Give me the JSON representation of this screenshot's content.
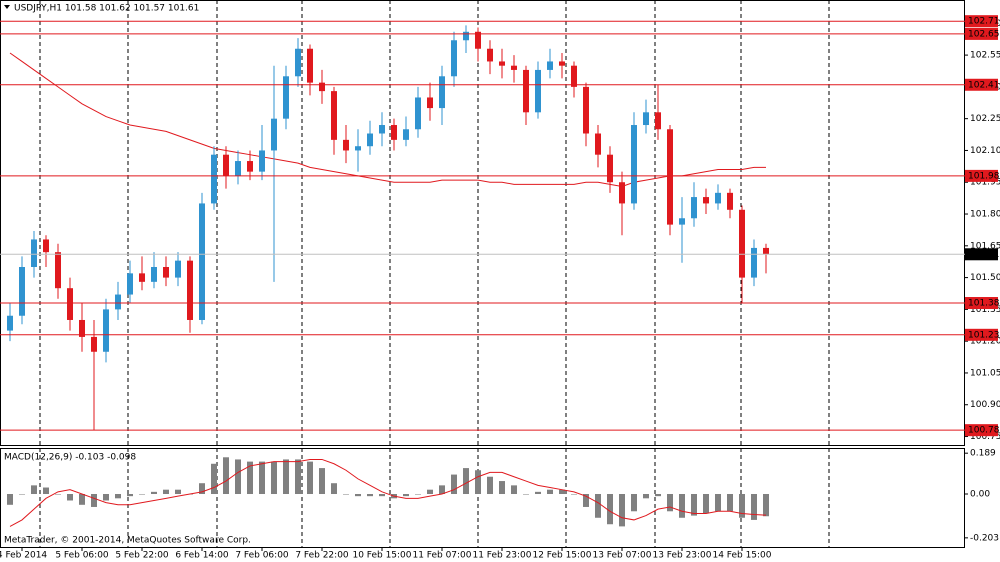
{
  "chart_data": [
    {
      "type": "candlestick",
      "title": "USDJPY,H1  101.58 101.62 101.57 101.61",
      "categories": [
        null,
        "4 Feb 2014",
        null,
        null,
        null,
        null,
        "5 Feb 06:00",
        null,
        null,
        null,
        null,
        "5 Feb 22:00",
        null,
        null,
        null,
        null,
        "6 Feb 14:00",
        null,
        null,
        null,
        null,
        "7 Feb 06:00",
        null,
        null,
        null,
        null,
        "7 Feb 22:00",
        null,
        null,
        null,
        null,
        "10 Feb 15:00",
        null,
        null,
        null,
        null,
        "11 Feb 07:00",
        null,
        null,
        null,
        null,
        "11 Feb 23:00",
        null,
        null,
        null,
        null,
        "12 Feb 15:00",
        null,
        null,
        null,
        null,
        "13 Feb 07:00",
        null,
        null,
        null,
        null,
        "13 Feb 23:00",
        null,
        null,
        null,
        null,
        "14 Feb 15:00",
        null,
        null
      ],
      "open": [
        101.25,
        101.32,
        101.55,
        101.68,
        101.62,
        101.45,
        101.3,
        101.22,
        101.15,
        101.35,
        101.42,
        101.52,
        101.48,
        101.55,
        101.5,
        101.58,
        101.3,
        101.85,
        102.08,
        101.98,
        102.05,
        102.0,
        102.1,
        102.25,
        102.45,
        102.58,
        102.42,
        102.38,
        102.15,
        102.1,
        102.12,
        102.18,
        102.22,
        102.15,
        102.2,
        102.35,
        102.3,
        102.45,
        102.62,
        102.66,
        102.58,
        102.52,
        102.5,
        102.48,
        102.28,
        102.48,
        102.52,
        102.5,
        102.4,
        102.18,
        102.08,
        101.95,
        101.85,
        102.22,
        102.28,
        102.2,
        101.75,
        101.78,
        101.88,
        101.85,
        101.9,
        101.82,
        101.5,
        101.64
      ],
      "high": [
        101.38,
        101.6,
        101.72,
        101.7,
        101.66,
        101.5,
        101.38,
        101.3,
        101.4,
        101.48,
        101.58,
        101.6,
        101.62,
        101.6,
        101.62,
        101.6,
        101.9,
        102.12,
        102.12,
        102.1,
        102.1,
        102.22,
        102.5,
        102.5,
        102.63,
        102.6,
        102.48,
        102.4,
        102.22,
        102.2,
        102.24,
        102.28,
        102.25,
        102.26,
        102.4,
        102.42,
        102.5,
        102.66,
        102.69,
        102.68,
        102.62,
        102.58,
        102.55,
        102.5,
        102.52,
        102.58,
        102.56,
        102.52,
        102.42,
        102.22,
        102.12,
        102.0,
        102.28,
        102.34,
        102.41,
        102.22,
        101.88,
        101.95,
        101.92,
        101.94,
        101.92,
        101.84,
        101.68,
        101.66
      ],
      "low": [
        101.2,
        101.28,
        101.5,
        101.55,
        101.4,
        101.25,
        101.15,
        100.78,
        101.1,
        101.3,
        101.38,
        101.44,
        101.45,
        101.46,
        101.46,
        101.24,
        101.28,
        101.82,
        101.92,
        101.94,
        101.96,
        101.96,
        101.48,
        102.2,
        102.4,
        102.36,
        102.32,
        102.08,
        102.04,
        102.0,
        102.08,
        102.12,
        102.1,
        102.12,
        102.16,
        102.24,
        102.22,
        102.4,
        102.56,
        102.52,
        102.46,
        102.44,
        102.42,
        102.22,
        102.25,
        102.44,
        102.44,
        102.35,
        102.12,
        102.02,
        101.9,
        101.7,
        101.82,
        102.18,
        102.15,
        101.7,
        101.57,
        101.74,
        101.8,
        101.82,
        101.78,
        101.38,
        101.46,
        101.52
      ],
      "close": [
        101.32,
        101.55,
        101.68,
        101.62,
        101.45,
        101.3,
        101.22,
        101.15,
        101.35,
        101.42,
        101.52,
        101.48,
        101.55,
        101.5,
        101.58,
        101.3,
        101.85,
        102.08,
        101.98,
        102.05,
        102.0,
        102.1,
        102.25,
        102.45,
        102.58,
        102.42,
        102.38,
        102.15,
        102.1,
        102.12,
        102.18,
        102.22,
        102.15,
        102.2,
        102.35,
        102.3,
        102.45,
        102.62,
        102.66,
        102.58,
        102.52,
        102.5,
        102.48,
        102.28,
        102.48,
        102.52,
        102.5,
        102.4,
        102.18,
        102.08,
        101.95,
        101.85,
        102.22,
        102.28,
        102.2,
        101.75,
        101.78,
        101.88,
        101.85,
        101.9,
        101.82,
        101.5,
        101.64,
        101.61
      ],
      "up_color": "#2f93d0",
      "down_color": "#e0191e",
      "moving_average": {
        "color": "#e0191e",
        "values": [
          102.56,
          102.52,
          102.48,
          102.44,
          102.4,
          102.36,
          102.32,
          102.29,
          102.26,
          102.24,
          102.22,
          102.21,
          102.2,
          102.19,
          102.17,
          102.15,
          102.13,
          102.11,
          102.1,
          102.09,
          102.08,
          102.07,
          102.06,
          102.05,
          102.04,
          102.02,
          102.01,
          102.0,
          101.99,
          101.98,
          101.97,
          101.96,
          101.95,
          101.95,
          101.95,
          101.95,
          101.96,
          101.96,
          101.96,
          101.96,
          101.95,
          101.95,
          101.94,
          101.94,
          101.94,
          101.94,
          101.94,
          101.94,
          101.95,
          101.95,
          101.94,
          101.93,
          101.95,
          101.96,
          101.97,
          101.98,
          101.98,
          101.99,
          102.0,
          102.01,
          102.01,
          102.01,
          102.02,
          102.02
        ]
      },
      "levels": [
        102.71,
        102.65,
        102.41,
        101.98,
        101.38,
        101.23,
        100.78
      ],
      "level_color": "#e0191e",
      "current_price": 101.61,
      "ylim": [
        100.71,
        102.81
      ],
      "yticks": [
        100.75,
        {
          "value": 100.9,
          "label": "100.90"
        },
        101.05,
        {
          "value": 101.2,
          "label": "101.20"
        },
        101.35,
        {
          "value": 101.5,
          "label": "101.50"
        },
        101.65,
        {
          "value": 101.8,
          "label": "101.80"
        },
        101.95,
        {
          "value": 102.1,
          "label": "102.10"
        },
        102.25,
        {
          "value": 102.4,
          "label": "102.40"
        },
        102.55,
        {
          "value": 102.7,
          "label": "102.70"
        }
      ]
    },
    {
      "type": "bar",
      "title": "MACD(12,26,9) -0.103 -0.098",
      "annotation": "MetaTrader, © 2001-2014, MetaQuotes Software Corp.",
      "color": "#808080",
      "values": [
        -0.05,
        0.0,
        0.04,
        0.03,
        0.0,
        -0.03,
        -0.05,
        -0.06,
        -0.03,
        -0.02,
        -0.01,
        0.0,
        0.01,
        0.02,
        0.02,
        0.0,
        0.05,
        0.14,
        0.17,
        0.16,
        0.15,
        0.15,
        0.15,
        0.16,
        0.16,
        0.15,
        0.12,
        0.05,
        0.0,
        -0.01,
        -0.01,
        -0.01,
        -0.02,
        -0.01,
        0.0,
        0.02,
        0.04,
        0.09,
        0.12,
        0.11,
        0.08,
        0.06,
        0.04,
        0.0,
        0.01,
        0.02,
        0.02,
        0.0,
        -0.06,
        -0.11,
        -0.14,
        -0.15,
        -0.08,
        -0.02,
        -0.01,
        -0.08,
        -0.11,
        -0.1,
        -0.09,
        -0.08,
        -0.08,
        -0.11,
        -0.12,
        -0.103
      ],
      "signal": {
        "color": "#e0191e",
        "values": [
          -0.15,
          -0.12,
          -0.07,
          -0.02,
          0.01,
          0.02,
          0.0,
          -0.02,
          -0.04,
          -0.05,
          -0.05,
          -0.04,
          -0.03,
          -0.02,
          -0.01,
          0.0,
          0.01,
          0.03,
          0.06,
          0.1,
          0.13,
          0.14,
          0.15,
          0.15,
          0.15,
          0.16,
          0.16,
          0.14,
          0.11,
          0.07,
          0.04,
          0.01,
          -0.01,
          -0.02,
          -0.02,
          -0.01,
          0.0,
          0.02,
          0.05,
          0.08,
          0.1,
          0.1,
          0.08,
          0.06,
          0.04,
          0.03,
          0.02,
          0.01,
          -0.01,
          -0.04,
          -0.08,
          -0.11,
          -0.12,
          -0.1,
          -0.07,
          -0.06,
          -0.08,
          -0.09,
          -0.09,
          -0.08,
          -0.08,
          -0.09,
          -0.095,
          -0.098
        ]
      },
      "ylim": [
        -0.25,
        0.213
      ],
      "yticks": [
        0.189,
        {
          "value": 0,
          "label": "0.00"
        },
        -0.203
      ]
    }
  ]
}
